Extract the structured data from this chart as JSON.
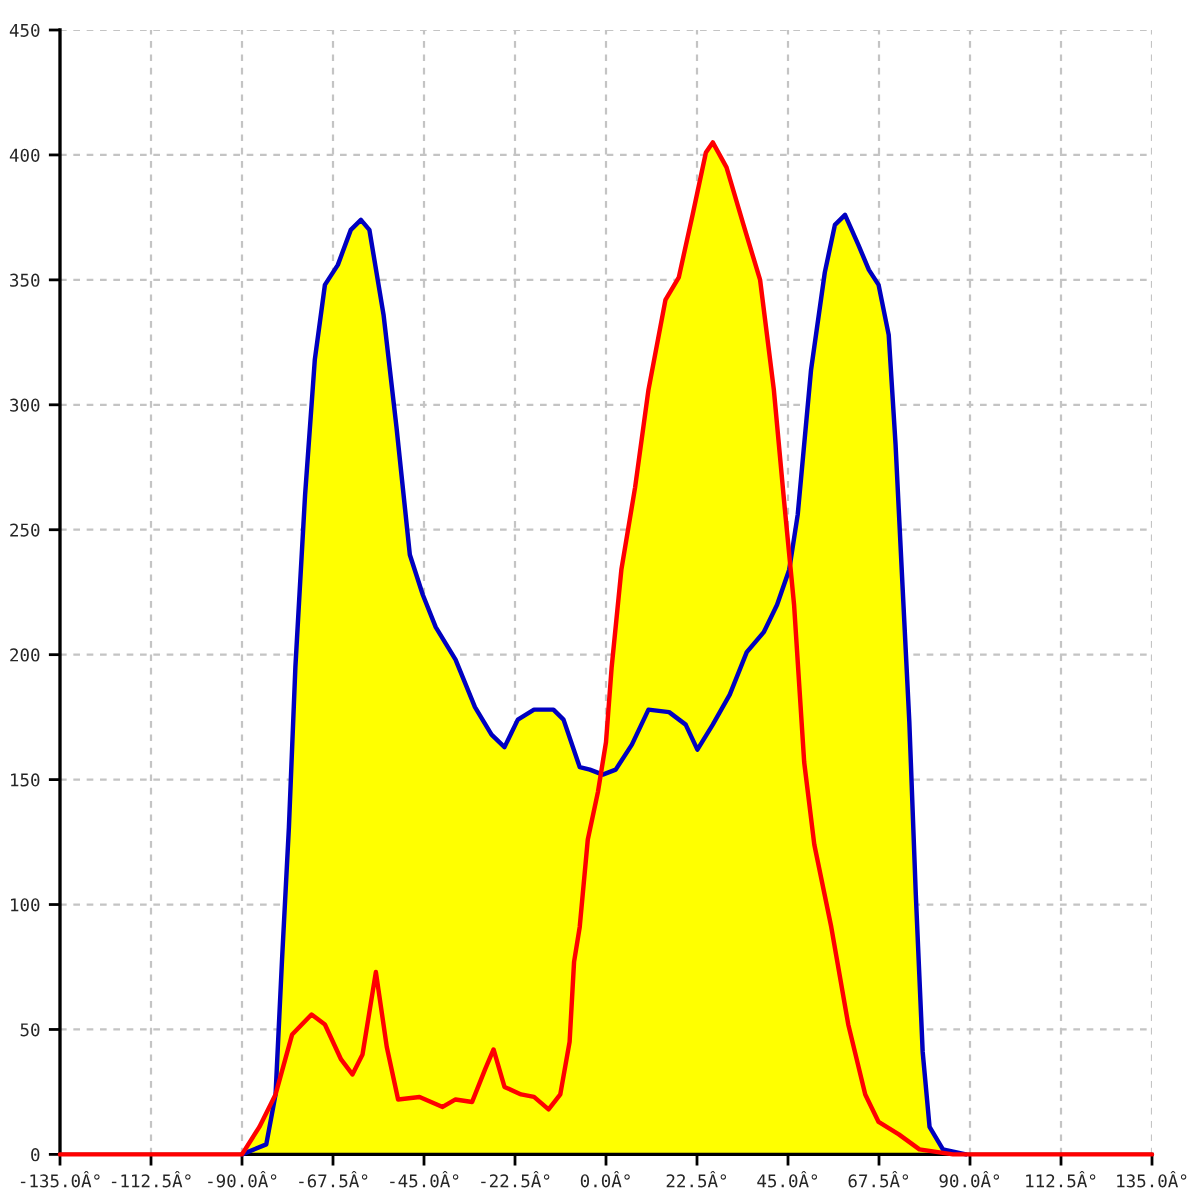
{
  "chart_data": {
    "type": "line",
    "xlim": [
      -135,
      135
    ],
    "ylim": [
      0,
      450
    ],
    "xticks": [
      {
        "value": -135,
        "label": "-135.0Â°"
      },
      {
        "value": -112.5,
        "label": "-112.5Â°"
      },
      {
        "value": -90,
        "label": "-90.0Â°"
      },
      {
        "value": -67.5,
        "label": "-67.5Â°"
      },
      {
        "value": -45,
        "label": "-45.0Â°"
      },
      {
        "value": -22.5,
        "label": "-22.5Â°"
      },
      {
        "value": 0,
        "label": "0.0Â°"
      },
      {
        "value": 22.5,
        "label": "22.5Â°"
      },
      {
        "value": 45,
        "label": "45.0Â°"
      },
      {
        "value": 67.5,
        "label": "67.5Â°"
      },
      {
        "value": 90,
        "label": "90.0Â°"
      },
      {
        "value": 112.5,
        "label": "112.5Â°"
      },
      {
        "value": 135,
        "label": "135.0Â°"
      }
    ],
    "yticks": [
      0,
      50,
      100,
      150,
      200,
      250,
      300,
      350,
      400,
      450
    ],
    "grid": true,
    "series": [
      {
        "type": "area",
        "color": "#ffff00",
        "x": [
          -90,
          -85.7,
          -81.7,
          -80.1,
          -78.4,
          -76.8,
          -74.4,
          -72,
          -69.5,
          -66.3,
          -63.1,
          -60.6,
          -58.5,
          -55,
          -51.8,
          -48.5,
          -45.3,
          -42.1,
          -37.2,
          -32.4,
          -28.3,
          -25.1,
          -21.8,
          -17.8,
          -13,
          -10.5,
          -6.5,
          -4,
          -1.3,
          0,
          1.4,
          3.8,
          7.2,
          10.5,
          14.7,
          18,
          21.4,
          24.7,
          26.4,
          29.8,
          34,
          38.1,
          41.5,
          44,
          45.6,
          47.4,
          50.7,
          54.1,
          56.6,
          59.1,
          62.4,
          65,
          67.4,
          69.9,
          71.6,
          73.3,
          75,
          76.6,
          78.3,
          80,
          83.3,
          89
        ],
        "values": [
          0,
          11,
          24,
          78,
          131,
          195,
          264,
          318,
          348,
          356,
          370,
          374,
          370,
          336,
          291,
          240,
          224,
          211,
          198,
          179,
          168,
          163,
          174,
          178,
          178,
          174,
          155,
          154,
          152,
          165,
          195,
          234,
          267,
          306,
          342,
          351,
          376,
          401,
          405,
          395,
          372,
          350,
          306,
          262,
          236,
          256,
          314,
          353,
          372,
          376,
          364,
          354,
          348,
          328,
          284,
          228,
          173,
          104,
          41,
          11,
          2,
          0
        ]
      },
      {
        "color": "#0000c0",
        "x": [
          -90,
          -84,
          -81.7,
          -80.1,
          -78.4,
          -76.8,
          -74.4,
          -72,
          -69.5,
          -66.3,
          -63.1,
          -60.6,
          -58.5,
          -55,
          -51.8,
          -48.5,
          -45.3,
          -42.1,
          -37.2,
          -32.4,
          -28.3,
          -25.1,
          -21.8,
          -17.8,
          -13,
          -10.5,
          -6.5,
          -4,
          -0.8,
          2.4,
          6.4,
          10.5,
          15.6,
          19.7,
          22.6,
          26.4,
          30.6,
          34.8,
          39,
          42.3,
          45.3,
          47.4,
          50.7,
          54.1,
          56.6,
          59.1,
          62.4,
          65,
          67.4,
          69.9,
          71.6,
          73.3,
          75,
          76.6,
          78.3,
          80,
          83.3,
          89
        ],
        "values": [
          0,
          4,
          24,
          78,
          131,
          195,
          264,
          318,
          348,
          356,
          370,
          374,
          370,
          336,
          291,
          240,
          224,
          211,
          198,
          179,
          168,
          163,
          174,
          178,
          178,
          174,
          155,
          154,
          152,
          154,
          164,
          178,
          177,
          172,
          162,
          172,
          184,
          201,
          209,
          220,
          234,
          256,
          314,
          353,
          372,
          376,
          364,
          354,
          348,
          328,
          284,
          228,
          173,
          104,
          41,
          11,
          2,
          0
        ]
      },
      {
        "color": "#ff0000",
        "x": [
          -135,
          -90,
          -85.7,
          -81.7,
          -77.6,
          -72.8,
          -69.5,
          -65.5,
          -62.7,
          -60.2,
          -56.9,
          -54.2,
          -51.4,
          -46.1,
          -40.4,
          -37.2,
          -33.1,
          -29.9,
          -27.8,
          -25.1,
          -21,
          -17.8,
          -14.2,
          -11.3,
          -9,
          -7.9,
          -6.5,
          -4.5,
          -2,
          0,
          1.4,
          3.8,
          7.2,
          10.5,
          14.7,
          18,
          21.4,
          24.7,
          26.4,
          29.8,
          34,
          38.1,
          41.5,
          44,
          46.5,
          49,
          51.5,
          55.7,
          59.9,
          64.1,
          67.4,
          72.4,
          77.5,
          85.8,
          135
        ],
        "values": [
          0,
          0,
          11,
          24,
          48,
          56,
          52,
          38,
          32,
          40,
          73,
          43,
          22,
          23,
          19,
          22,
          21,
          34,
          42,
          27,
          24,
          23,
          18,
          24,
          45,
          77,
          91,
          126,
          145,
          165,
          195,
          234,
          267,
          306,
          342,
          351,
          376,
          401,
          405,
          395,
          372,
          350,
          306,
          262,
          220,
          157,
          124,
          91,
          52,
          24,
          13,
          8,
          2,
          0,
          0
        ]
      }
    ]
  }
}
